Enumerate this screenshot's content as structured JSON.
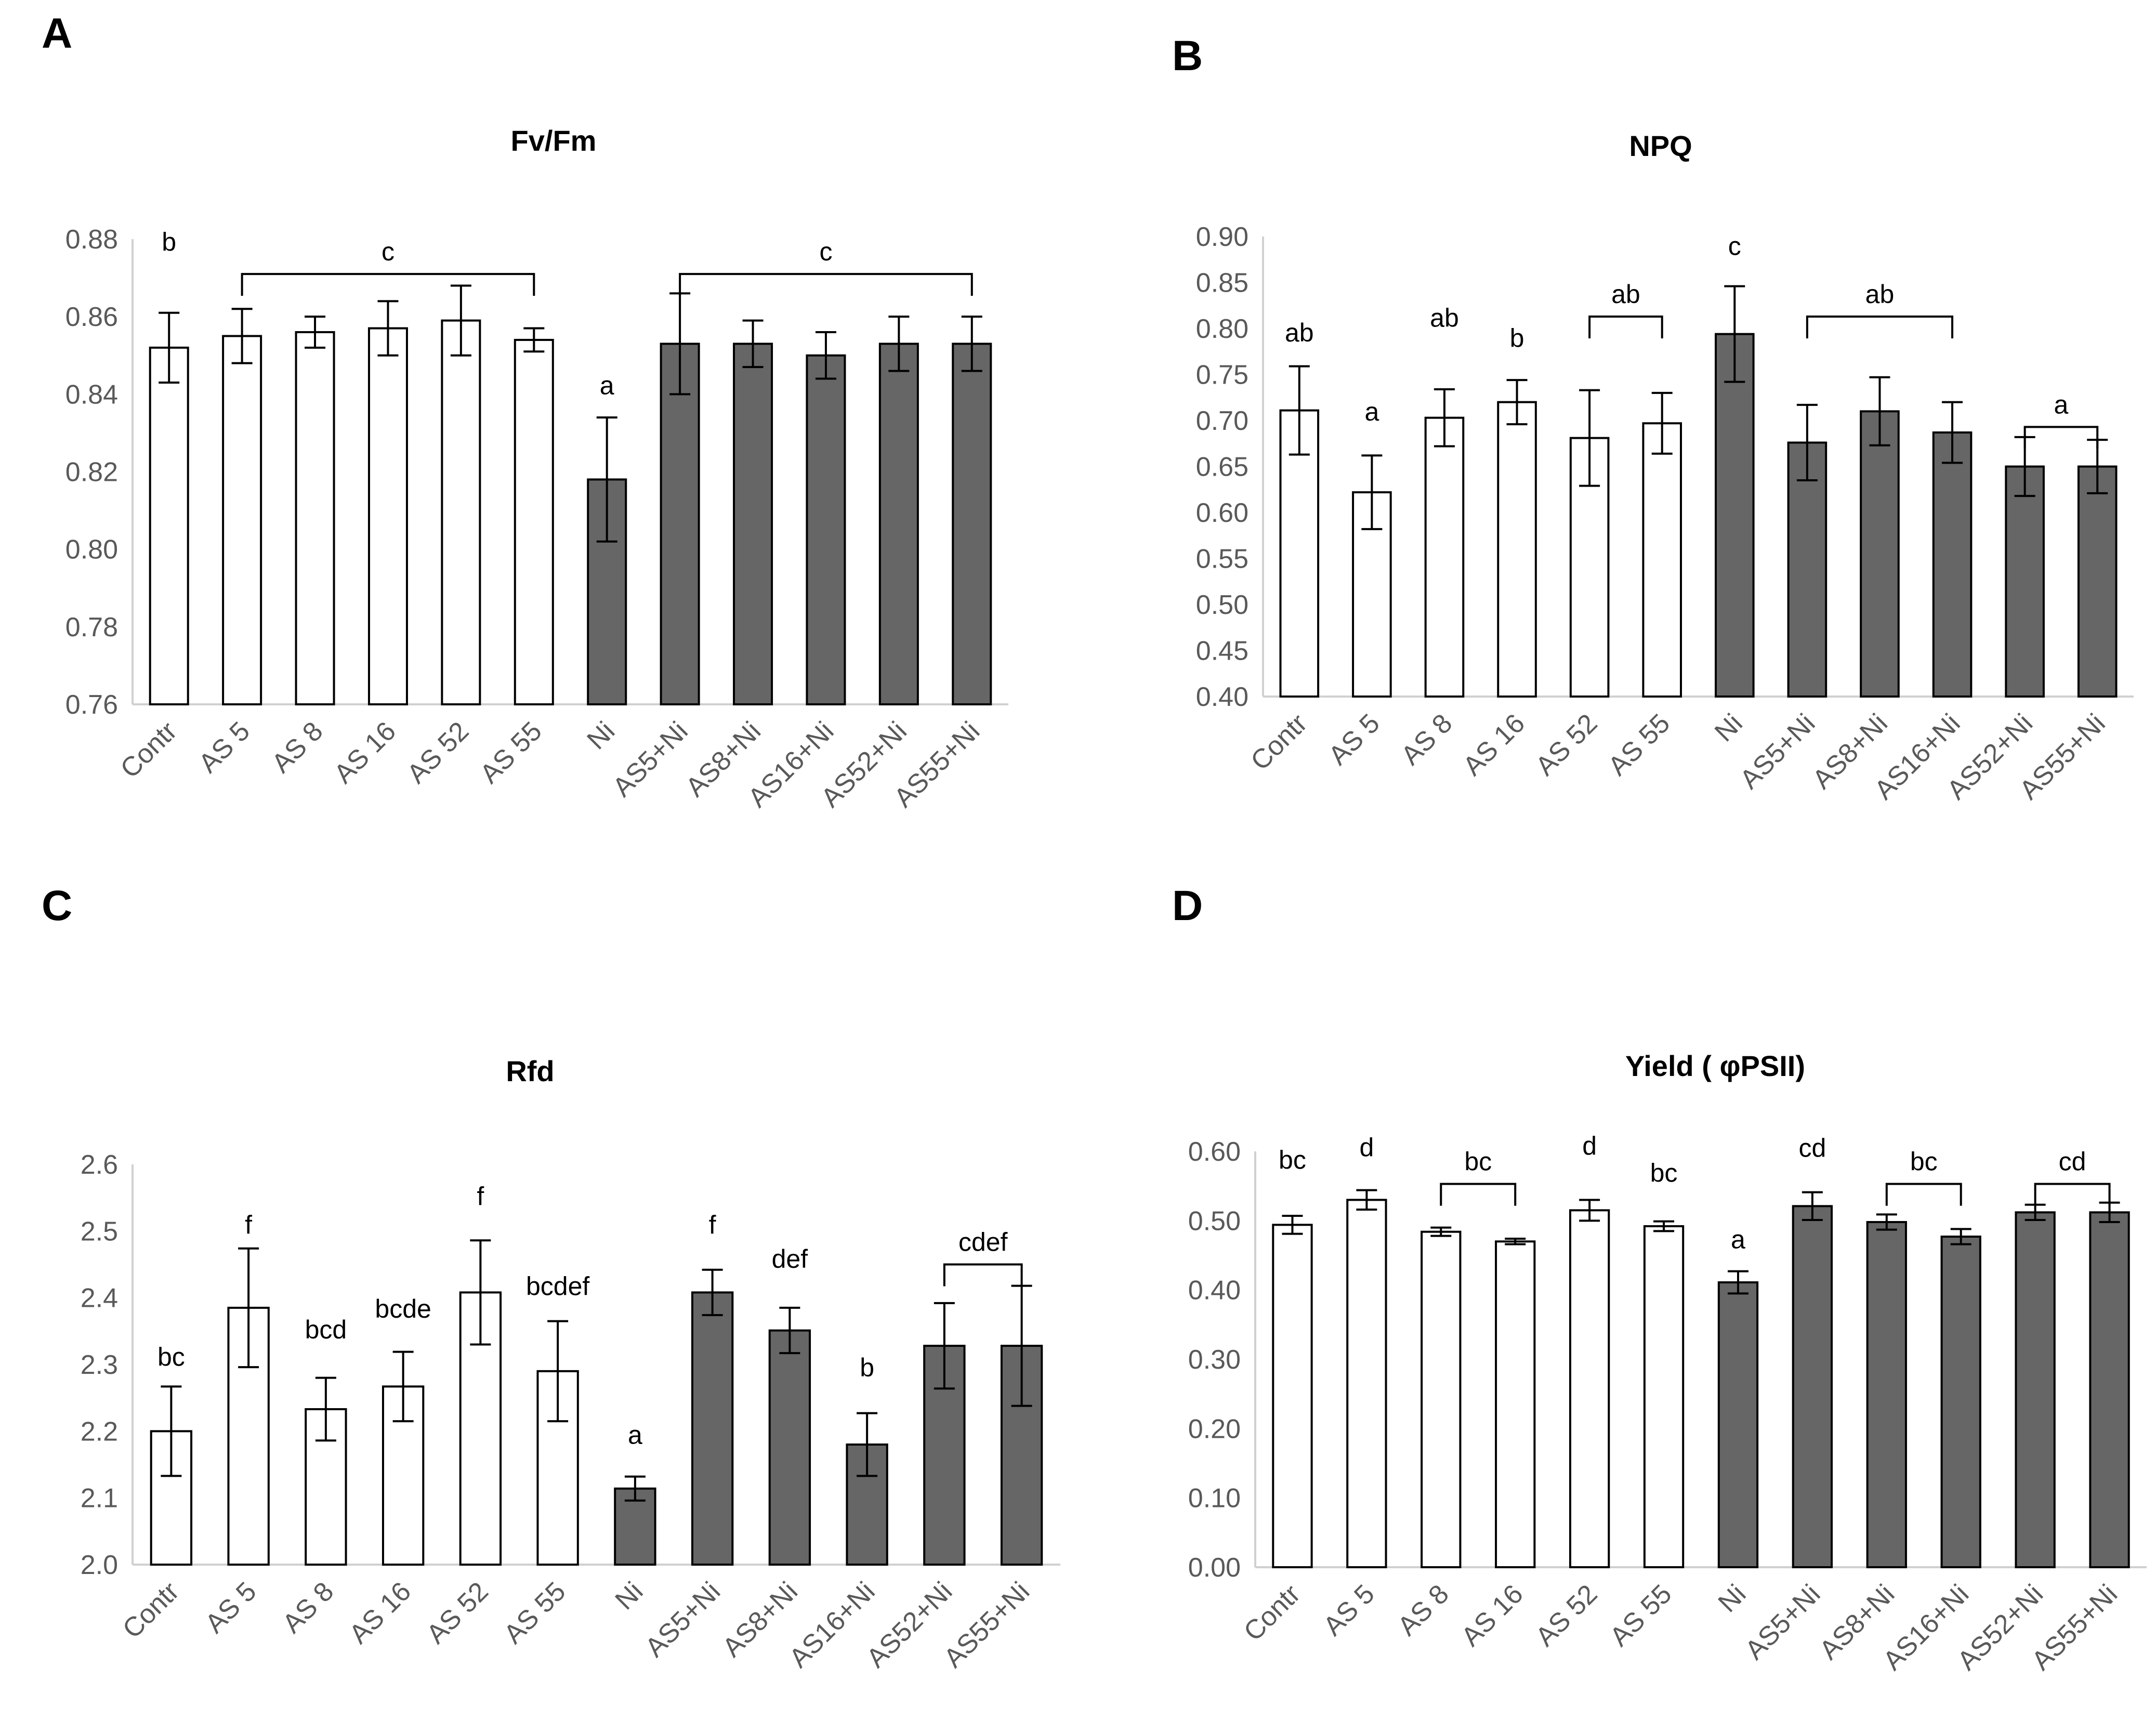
{
  "figure": {
    "bar_colors": {
      "open": "#ffffff",
      "filled": "#666666"
    },
    "axis_color": "#d0d0d0",
    "tick_color": "#595959",
    "text_color": "#000000"
  },
  "chart_data": [
    {
      "panel_label": "A",
      "type": "bar",
      "title": "Fv/Fm",
      "xlabel": "",
      "ylabel": "",
      "categories": [
        "Contr",
        "AS 5",
        "AS 8",
        "AS 16",
        "AS 52",
        "AS 55",
        "Ni",
        "AS5+Ni",
        "AS8+Ni",
        "AS16+Ni",
        "AS52+Ni",
        "AS55+Ni"
      ],
      "values": [
        0.852,
        0.855,
        0.856,
        0.857,
        0.859,
        0.854,
        0.818,
        0.853,
        0.853,
        0.85,
        0.853,
        0.853
      ],
      "errors": [
        0.009,
        0.007,
        0.004,
        0.007,
        0.009,
        0.003,
        0.016,
        0.013,
        0.006,
        0.006,
        0.007,
        0.007
      ],
      "filled": [
        false,
        false,
        false,
        false,
        false,
        false,
        true,
        true,
        true,
        true,
        true,
        true
      ],
      "ylim": [
        0.76,
        0.88
      ],
      "yticks": [
        "0.76",
        "0.78",
        "0.80",
        "0.82",
        "0.84",
        "0.86",
        "0.88"
      ],
      "grid": false,
      "annotations": [
        {
          "text": "b",
          "cat": 0,
          "y": 0.877
        },
        {
          "text": "a",
          "cat": 6,
          "y": 0.84
        }
      ],
      "brackets": [
        {
          "from": 1,
          "to": 5,
          "y": 0.871,
          "text": "c"
        },
        {
          "from": 7,
          "to": 11,
          "y": 0.871,
          "text": "c"
        }
      ]
    },
    {
      "panel_label": "B",
      "type": "bar",
      "title": "NPQ",
      "xlabel": "",
      "ylabel": "",
      "categories": [
        "Contr",
        "AS 5",
        "AS 8",
        "AS 16",
        "AS 52",
        "AS 55",
        "Ni",
        "AS5+Ni",
        "AS8+Ni",
        "AS16+Ni",
        "AS52+Ni",
        "AS55+Ni"
      ],
      "values": [
        0.711,
        0.622,
        0.703,
        0.72,
        0.681,
        0.697,
        0.794,
        0.676,
        0.71,
        0.687,
        0.65,
        0.65
      ],
      "errors": [
        0.048,
        0.04,
        0.031,
        0.024,
        0.052,
        0.033,
        0.052,
        0.041,
        0.037,
        0.033,
        0.032,
        0.029
      ],
      "filled": [
        false,
        false,
        false,
        false,
        false,
        false,
        true,
        true,
        true,
        true,
        true,
        true
      ],
      "ylim": [
        0.4,
        0.9
      ],
      "yticks": [
        "0.40",
        "0.45",
        "0.50",
        "0.55",
        "0.60",
        "0.65",
        "0.70",
        "0.75",
        "0.80",
        "0.85",
        "0.90"
      ],
      "grid": false,
      "annotations": [
        {
          "text": "ab",
          "cat": 0,
          "y": 0.786
        },
        {
          "text": "a",
          "cat": 1,
          "y": 0.7
        },
        {
          "text": "ab",
          "cat": 2,
          "y": 0.802
        },
        {
          "text": "b",
          "cat": 3,
          "y": 0.78
        },
        {
          "text": "c",
          "cat": 6,
          "y": 0.88
        }
      ],
      "brackets": [
        {
          "from": 4,
          "to": 5,
          "y": 0.813,
          "text": "ab"
        },
        {
          "from": 7,
          "to": 9,
          "y": 0.813,
          "text": "ab"
        },
        {
          "from": 10,
          "to": 11,
          "y": 0.693,
          "text": "a"
        }
      ]
    },
    {
      "panel_label": "C",
      "type": "bar",
      "title": "Rfd",
      "xlabel": "",
      "ylabel": "",
      "categories": [
        "Contr",
        "AS 5",
        "AS 8",
        "AS 16",
        "AS 52",
        "AS 55",
        "Ni",
        "AS5+Ni",
        "AS8+Ni",
        "AS16+Ni",
        "AS52+Ni",
        "AS55+Ni"
      ],
      "values": [
        2.2,
        2.385,
        2.233,
        2.267,
        2.408,
        2.29,
        2.114,
        2.408,
        2.351,
        2.18,
        2.328,
        2.328
      ],
      "errors": [
        0.067,
        0.089,
        0.047,
        0.052,
        0.078,
        0.075,
        0.018,
        0.034,
        0.034,
        0.047,
        0.064,
        0.09
      ],
      "filled": [
        false,
        false,
        false,
        false,
        false,
        false,
        true,
        true,
        true,
        true,
        true,
        true
      ],
      "ylim": [
        2.0,
        2.6
      ],
      "yticks": [
        "2.0",
        "2.1",
        "2.2",
        "2.3",
        "2.4",
        "2.5",
        "2.6"
      ],
      "grid": false,
      "annotations": [
        {
          "text": "bc",
          "cat": 0,
          "y": 2.298
        },
        {
          "text": "f",
          "cat": 1,
          "y": 2.496
        },
        {
          "text": "bcd",
          "cat": 2,
          "y": 2.339
        },
        {
          "text": "bcde",
          "cat": 3,
          "y": 2.37
        },
        {
          "text": "f",
          "cat": 4,
          "y": 2.539
        },
        {
          "text": "bcdef",
          "cat": 5,
          "y": 2.404
        },
        {
          "text": "a",
          "cat": 6,
          "y": 2.181
        },
        {
          "text": "f",
          "cat": 7,
          "y": 2.496
        },
        {
          "text": "def",
          "cat": 8,
          "y": 2.445
        },
        {
          "text": "b",
          "cat": 9,
          "y": 2.282
        }
      ],
      "brackets": [
        {
          "from": 10,
          "to": 11,
          "y": 2.45,
          "text": "cdef"
        }
      ]
    },
    {
      "panel_label": "D",
      "type": "bar",
      "title": "Yield ( φPSII)",
      "xlabel": "",
      "ylabel": "",
      "categories": [
        "Contr",
        "AS 5",
        "AS 8",
        "AS 16",
        "AS 52",
        "AS 55",
        "Ni",
        "AS5+Ni",
        "AS8+Ni",
        "AS16+Ni",
        "AS52+Ni",
        "AS55+Ni"
      ],
      "values": [
        0.494,
        0.53,
        0.484,
        0.47,
        0.515,
        0.492,
        0.411,
        0.521,
        0.498,
        0.477,
        0.512,
        0.512
      ],
      "errors": [
        0.013,
        0.014,
        0.006,
        0.004,
        0.015,
        0.007,
        0.016,
        0.02,
        0.011,
        0.011,
        0.011,
        0.014
      ],
      "filled": [
        false,
        false,
        false,
        false,
        false,
        false,
        true,
        true,
        true,
        true,
        true,
        true
      ],
      "ylim": [
        0.0,
        0.6
      ],
      "yticks": [
        "0.00",
        "0.10",
        "0.20",
        "0.30",
        "0.40",
        "0.50",
        "0.60"
      ],
      "grid": false,
      "annotations": [
        {
          "text": "bc",
          "cat": 0,
          "y": 0.575
        },
        {
          "text": "d",
          "cat": 1,
          "y": 0.593
        },
        {
          "text": "d",
          "cat": 4,
          "y": 0.595
        },
        {
          "text": "bc",
          "cat": 5,
          "y": 0.556
        },
        {
          "text": "a",
          "cat": 6,
          "y": 0.46
        },
        {
          "text": "cd",
          "cat": 7,
          "y": 0.592
        }
      ],
      "brackets": [
        {
          "from": 2,
          "to": 3,
          "y": 0.553,
          "text": "bc"
        },
        {
          "from": 8,
          "to": 9,
          "y": 0.553,
          "text": "bc"
        },
        {
          "from": 10,
          "to": 11,
          "y": 0.553,
          "text": "cd"
        }
      ]
    }
  ]
}
